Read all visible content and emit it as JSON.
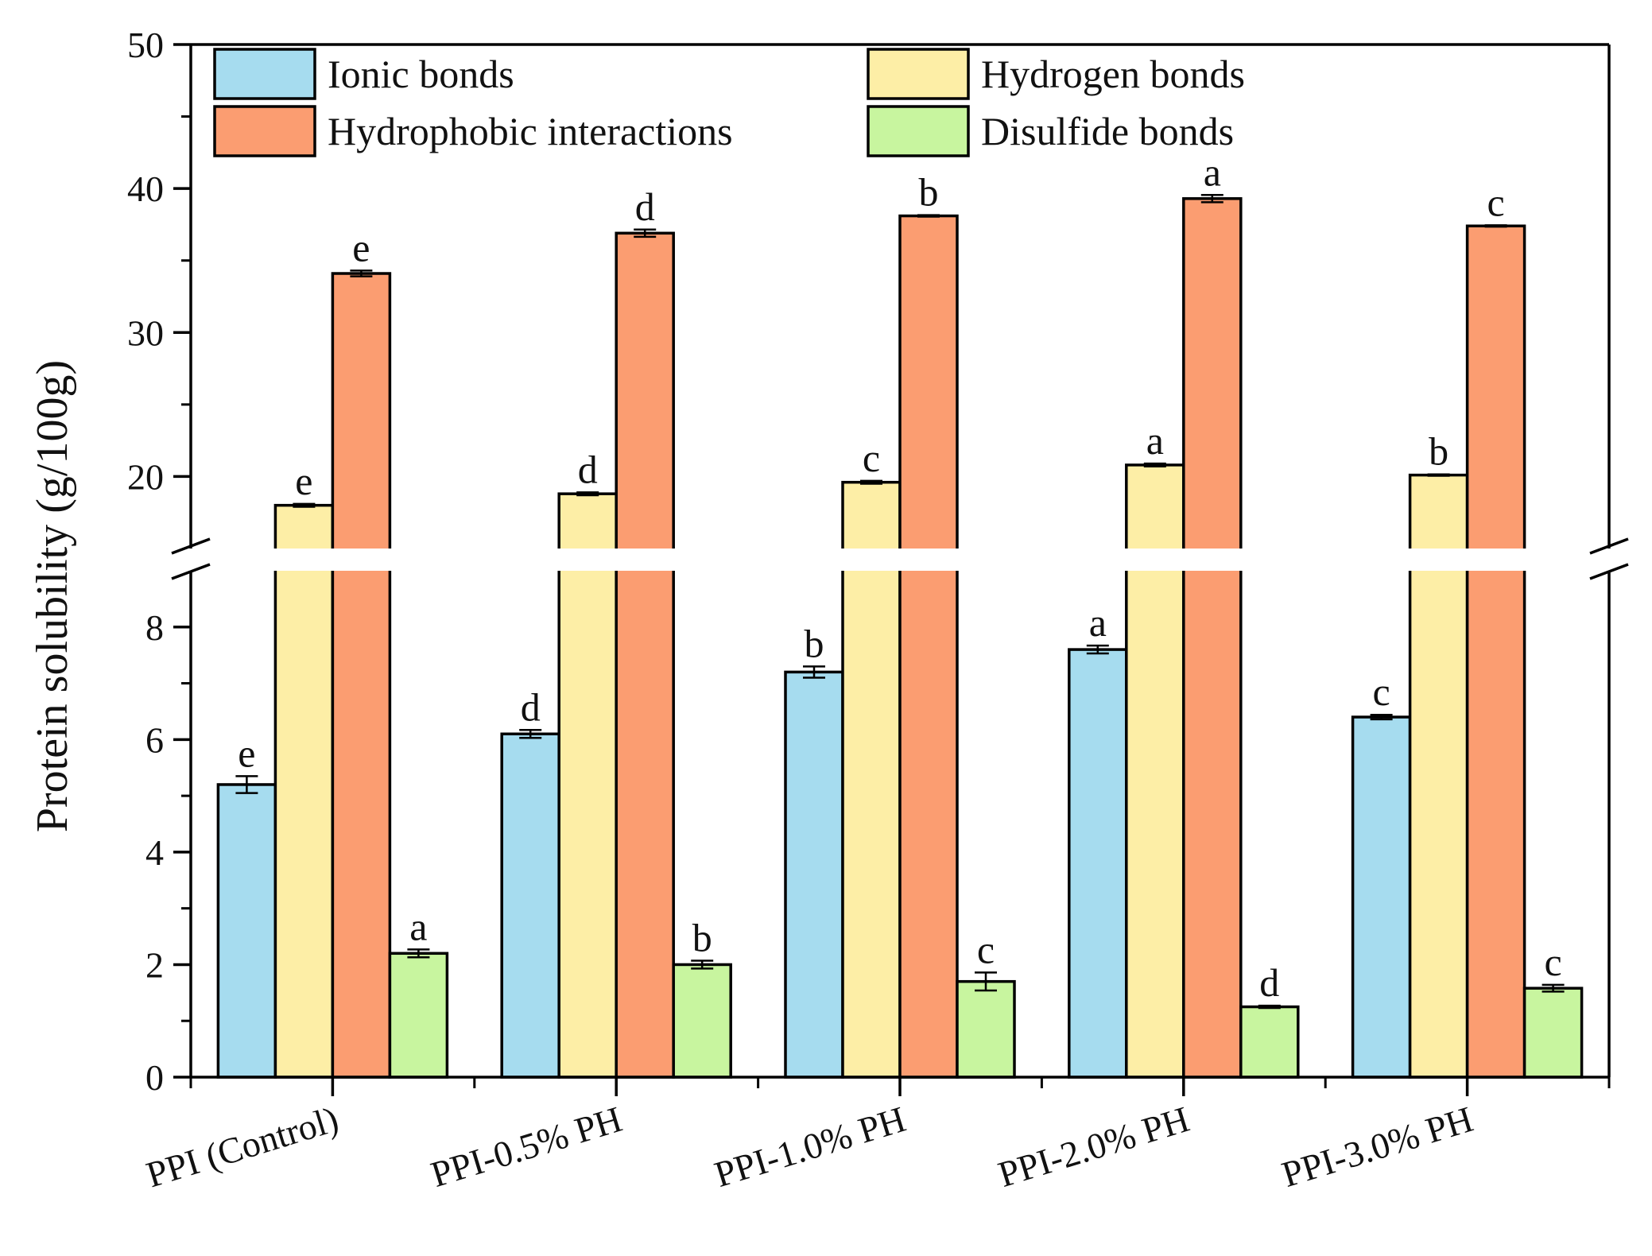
{
  "chart_data": {
    "type": "bar",
    "title": "",
    "xlabel": "",
    "ylabel": "Protein solubility (g/100g)",
    "categories": [
      "PPI (Control)",
      "PPI-0.5% PH",
      "PPI-1.0% PH",
      "PPI-2.0% PH",
      "PPI-3.0% PH"
    ],
    "y_axis_break": {
      "lower_range": [
        0,
        9
      ],
      "upper_range": [
        15,
        50
      ]
    },
    "lower_ticks": [
      "0",
      "2",
      "4",
      "6",
      "8"
    ],
    "upper_ticks": [
      "20",
      "30",
      "40",
      "50"
    ],
    "legend_position": "top",
    "series": [
      {
        "name": "Ionic bonds",
        "color": "#a6dcef",
        "values": [
          5.2,
          6.1,
          7.2,
          7.6,
          6.4
        ],
        "errors": [
          0.15,
          0.07,
          0.1,
          0.07,
          0.04
        ],
        "letters": [
          "e",
          "d",
          "b",
          "a",
          "c"
        ]
      },
      {
        "name": "Hydrogen bonds",
        "color": "#fdeea6",
        "values": [
          18.0,
          18.8,
          19.6,
          20.8,
          20.1
        ],
        "errors": [
          0.1,
          0.1,
          0.1,
          0.1,
          0.05
        ],
        "letters": [
          "e",
          "d",
          "c",
          "a",
          "b"
        ]
      },
      {
        "name": "Hydrophobic interactions",
        "color": "#fb9d71",
        "values": [
          34.1,
          36.9,
          38.1,
          39.3,
          37.4
        ],
        "errors": [
          0.2,
          0.25,
          0.05,
          0.25,
          0.05
        ],
        "letters": [
          "e",
          "d",
          "b",
          "a",
          "c"
        ]
      },
      {
        "name": "Disulfide bonds",
        "color": "#c8f59f",
        "values": [
          2.2,
          2.0,
          1.7,
          1.25,
          1.58
        ],
        "errors": [
          0.07,
          0.07,
          0.16,
          0.02,
          0.06
        ],
        "letters": [
          "a",
          "b",
          "c",
          "d",
          "c"
        ]
      }
    ]
  }
}
